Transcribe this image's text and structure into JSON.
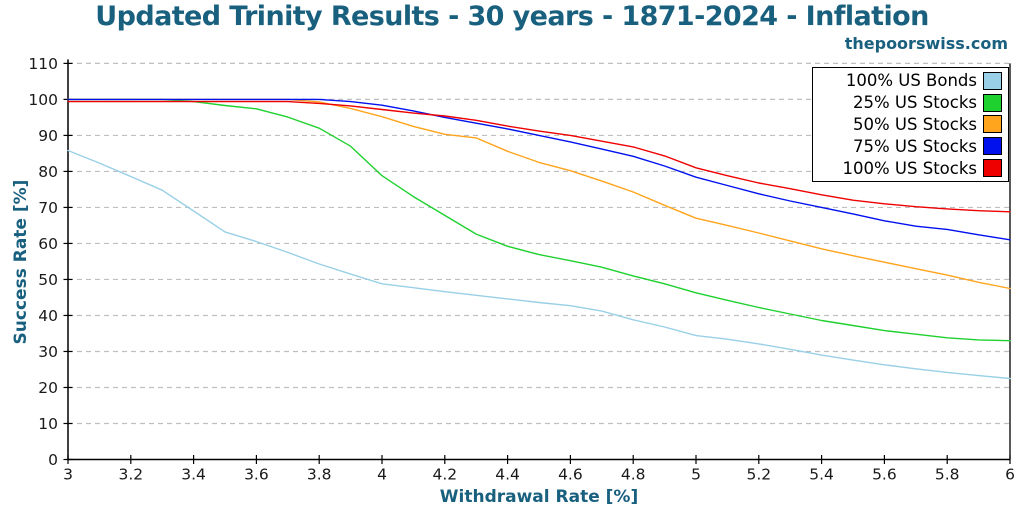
{
  "header": {
    "site": "thepoorswiss.com"
  },
  "colors": {
    "accent": "#19607F",
    "grid": "#bfbfbf",
    "tick_text": "#1a1a1a",
    "spine": "#000000"
  },
  "chart_data": {
    "type": "line",
    "title": "Updated Trinity Results - 30 years - 1871-2024 - Inflation",
    "xlabel": "Withdrawal Rate [%]",
    "ylabel": "Success Rate [%]",
    "xlim": [
      3,
      6
    ],
    "ylim": [
      0,
      110
    ],
    "grid": "horizontal-dashed",
    "legend_position": "upper right",
    "xticks": [
      3,
      3.2,
      3.4,
      3.6,
      3.8,
      4,
      4.2,
      4.4,
      4.6,
      4.8,
      5,
      5.2,
      5.4,
      5.6,
      5.8,
      6
    ],
    "xtick_labels": [
      "3",
      "3.2",
      "3.4",
      "3.6",
      "3.8",
      "4",
      "4.2",
      "4.4",
      "4.6",
      "4.8",
      "5",
      "5.2",
      "5.4",
      "5.6",
      "5.8",
      "6"
    ],
    "yticks": [
      0,
      10,
      20,
      30,
      40,
      50,
      60,
      70,
      80,
      90,
      100,
      110
    ],
    "x": [
      3.0,
      3.1,
      3.2,
      3.3,
      3.4,
      3.5,
      3.6,
      3.7,
      3.8,
      3.9,
      4.0,
      4.1,
      4.2,
      4.3,
      4.4,
      4.5,
      4.6,
      4.7,
      4.8,
      4.9,
      5.0,
      5.1,
      5.2,
      5.3,
      5.4,
      5.5,
      5.6,
      5.7,
      5.8,
      5.9,
      6.0
    ],
    "series": [
      {
        "name": "100% US Bonds",
        "color": "#99D0E7",
        "values": [
          85.8,
          82.3,
          78.6,
          74.8,
          69.0,
          63.2,
          60.5,
          57.5,
          54.3,
          51.5,
          48.8,
          47.7,
          46.6,
          45.6,
          44.6,
          43.6,
          42.7,
          41.2,
          38.8,
          36.8,
          34.4,
          33.4,
          32.1,
          30.6,
          29.0,
          27.6,
          26.3,
          25.2,
          24.2,
          23.3,
          22.5
        ]
      },
      {
        "name": "25% US Stocks",
        "color": "#1FD12F",
        "values": [
          100,
          100,
          100,
          100,
          99.4,
          98.3,
          97.4,
          95.1,
          92.0,
          87.0,
          78.8,
          73.0,
          67.8,
          62.6,
          59.2,
          56.9,
          55.2,
          53.4,
          51.0,
          48.8,
          46.3,
          44.2,
          42.2,
          40.4,
          38.6,
          37.2,
          35.8,
          34.8,
          33.8,
          33.2,
          33.0
        ]
      },
      {
        "name": "50% US Stocks",
        "color": "#FFA41D",
        "values": [
          100,
          100,
          100,
          100,
          100,
          100,
          100,
          100,
          99.3,
          97.5,
          95.2,
          92.5,
          90.3,
          89.3,
          85.6,
          82.5,
          80.2,
          77.3,
          74.3,
          70.6,
          67.0,
          65.0,
          62.9,
          60.7,
          58.5,
          56.6,
          54.8,
          53.0,
          51.2,
          49.2,
          47.5
        ]
      },
      {
        "name": "75% US Stocks",
        "color": "#0011EE",
        "values": [
          100,
          100,
          100,
          100,
          100,
          100,
          100,
          100,
          100,
          99.4,
          98.4,
          96.8,
          95.0,
          93.4,
          91.8,
          90.0,
          88.2,
          86.2,
          84.2,
          81.5,
          78.4,
          76.1,
          73.8,
          71.8,
          70.0,
          68.2,
          66.3,
          64.8,
          63.9,
          62.4,
          61.0
        ]
      },
      {
        "name": "100% US Stocks",
        "color": "#EE0000",
        "values": [
          99.4,
          99.4,
          99.4,
          99.4,
          99.4,
          99.4,
          99.4,
          99.4,
          98.9,
          98.2,
          97.2,
          96.2,
          95.4,
          94.2,
          92.6,
          91.2,
          90.0,
          88.4,
          86.8,
          84.3,
          81.0,
          78.8,
          76.8,
          75.2,
          73.5,
          72.0,
          71.0,
          70.2,
          69.6,
          69.1,
          68.8
        ]
      }
    ]
  }
}
